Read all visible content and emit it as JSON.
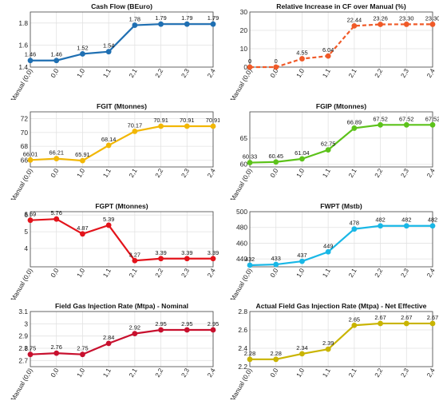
{
  "chart_data": [
    {
      "type": "line",
      "title": "Cash Flow (BEuro)",
      "categories": [
        "Manual (0,0)",
        "0,0",
        "1,0",
        "1,1",
        "2,1",
        "2,2",
        "2,3",
        "2,4"
      ],
      "values": [
        1.46,
        1.46,
        1.52,
        1.54,
        1.78,
        1.79,
        1.79,
        1.79
      ],
      "labels": [
        "1.46",
        "1.46",
        "1.52",
        "1.54",
        "1.78",
        "1.79",
        "1.79",
        "1.79"
      ],
      "ylim": [
        1.4,
        1.9
      ],
      "yticks": [
        "1.4",
        "1.6",
        "1.8"
      ],
      "ytick_values": [
        1.4,
        1.6,
        1.8
      ],
      "color": "#1f6fb2",
      "line_style": "solid",
      "grid": true
    },
    {
      "type": "line",
      "title": "Relative Increase in CF over Manual (%)",
      "categories": [
        "Manual (0,0)",
        "0,0",
        "1,0",
        "1,1",
        "2,1",
        "2,2",
        "2,3",
        "2,4"
      ],
      "values": [
        0,
        0,
        4.55,
        6.04,
        22.44,
        23.26,
        23.3,
        23.3
      ],
      "labels": [
        "0",
        "0",
        "4.55",
        "6.04",
        "22.44",
        "23.26",
        "23.30",
        "23.30"
      ],
      "ylim": [
        0,
        30
      ],
      "yticks": [
        "0",
        "10",
        "20",
        "30"
      ],
      "ytick_values": [
        0,
        10,
        20,
        30
      ],
      "color": "#f05a28",
      "line_style": "dashed",
      "grid": true
    },
    {
      "type": "line",
      "title": "FGIT (Mtonnes)",
      "categories": [
        "Manual (0,0)",
        "0,0",
        "1,0",
        "1,1",
        "2,1",
        "2,2",
        "2,3",
        "2,4"
      ],
      "values": [
        66.01,
        66.21,
        65.91,
        68.14,
        70.17,
        70.91,
        70.91,
        70.91
      ],
      "labels": [
        "66.01",
        "66.21",
        "65.91",
        "68.14",
        "70.17",
        "70.91",
        "70.91",
        "70.91"
      ],
      "ylim": [
        65,
        73
      ],
      "yticks": [
        "66",
        "68",
        "70",
        "72"
      ],
      "ytick_values": [
        66,
        68,
        70,
        72
      ],
      "color": "#f2b705",
      "line_style": "solid",
      "grid": true
    },
    {
      "type": "line",
      "title": "FGIP (Mtonnes)",
      "categories": [
        "Manual (0,0)",
        "0,0",
        "1,0",
        "1,1",
        "2,1",
        "2,2",
        "2,3",
        "2,4"
      ],
      "values": [
        60.33,
        60.45,
        61.04,
        62.75,
        66.89,
        67.52,
        67.52,
        67.52
      ],
      "labels": [
        "60.33",
        "60.45",
        "61.04",
        "62.75",
        "66.89",
        "67.52",
        "67.52",
        "67.52"
      ],
      "ylim": [
        59.5,
        70
      ],
      "yticks": [
        "60",
        "65"
      ],
      "ytick_values": [
        60,
        65
      ],
      "color": "#5cc21a",
      "line_style": "solid",
      "grid": true
    },
    {
      "type": "line",
      "title": "FGPT (Mtonnes)",
      "categories": [
        "Manual (0,0)",
        "0,0",
        "1,0",
        "1,1",
        "2,1",
        "2,2",
        "2,3",
        "2,4"
      ],
      "values": [
        5.69,
        5.76,
        4.87,
        5.39,
        3.27,
        3.39,
        3.39,
        3.39
      ],
      "labels": [
        "5.69",
        "5.76",
        "4.87",
        "5.39",
        "3.27",
        "3.39",
        "3.39",
        "3.39"
      ],
      "ylim": [
        2.9,
        6.2
      ],
      "yticks": [
        "4",
        "5",
        "6"
      ],
      "ytick_values": [
        4,
        5,
        6
      ],
      "color": "#e3131b",
      "line_style": "solid",
      "grid": true
    },
    {
      "type": "line",
      "title": "FWPT (Mstb)",
      "categories": [
        "Manual (0,0)",
        "0,0",
        "1,0",
        "1,1",
        "2,1",
        "2,2",
        "2,3",
        "2,4"
      ],
      "values": [
        432,
        433,
        437,
        449,
        478,
        482,
        482,
        482
      ],
      "labels": [
        "432",
        "433",
        "437",
        "449",
        "478",
        "482",
        "482",
        "482"
      ],
      "ylim": [
        430,
        500
      ],
      "yticks": [
        "440",
        "460",
        "480",
        "500"
      ],
      "ytick_values": [
        440,
        460,
        480,
        500
      ],
      "color": "#19b7e6",
      "line_style": "solid",
      "grid": true
    },
    {
      "type": "line",
      "title": "Field Gas Injection Rate (Mtpa) - Nominal",
      "categories": [
        "Manual (0,0)",
        "0,0",
        "1,0",
        "1,1",
        "2,1",
        "2,2",
        "2,3",
        "2,4"
      ],
      "values": [
        2.75,
        2.76,
        2.75,
        2.84,
        2.92,
        2.95,
        2.95,
        2.95
      ],
      "labels": [
        "2.75",
        "2.76",
        "2.75",
        "2.84",
        "2.92",
        "2.95",
        "2.95",
        "2.95"
      ],
      "ylim": [
        2.65,
        3.1
      ],
      "yticks": [
        "2.7",
        "2.8",
        "2.9",
        "3",
        "3.1"
      ],
      "ytick_values": [
        2.7,
        2.8,
        2.9,
        3.0,
        3.1
      ],
      "color": "#c8102e",
      "line_style": "solid",
      "grid": true
    },
    {
      "type": "line",
      "title": "Actual Field Gas Injection Rate (Mtpa) - Net Effective",
      "categories": [
        "Manual (0,0)",
        "0,0",
        "1,0",
        "1,1",
        "2,1",
        "2,2",
        "2,3",
        "2,4"
      ],
      "values": [
        2.28,
        2.28,
        2.34,
        2.39,
        2.65,
        2.67,
        2.67,
        2.67
      ],
      "labels": [
        "2.28",
        "2.28",
        "2.34",
        "2.39",
        "2.65",
        "2.67",
        "2.67",
        "2.67"
      ],
      "ylim": [
        2.2,
        2.8
      ],
      "yticks": [
        "2.2",
        "2.4",
        "2.6",
        "2.8"
      ],
      "ytick_values": [
        2.2,
        2.4,
        2.6,
        2.8
      ],
      "color": "#c9b400",
      "line_style": "solid",
      "grid": true
    }
  ]
}
